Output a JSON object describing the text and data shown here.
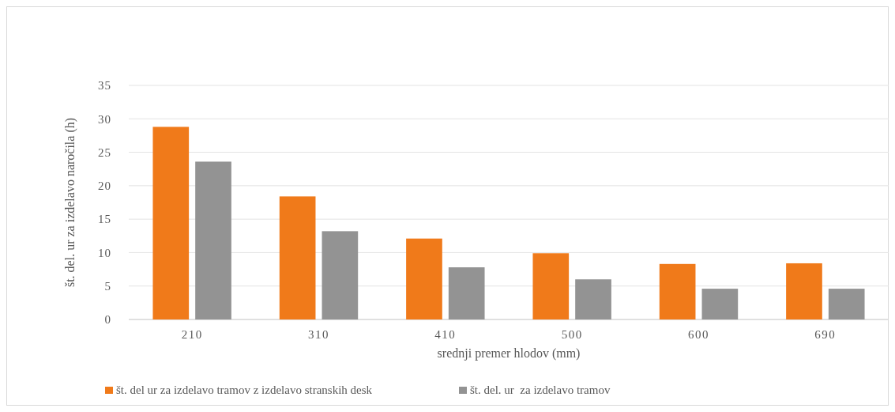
{
  "chart_data": {
    "type": "bar",
    "xlabel": "srednji premer hlodov (mm)",
    "ylabel": "št. del. ur za izdelavo naročila (h)",
    "categories": [
      "210",
      "310",
      "410",
      "500",
      "600",
      "690"
    ],
    "series": [
      {
        "name": "št. del ur za izdelavo tramov z izdelavo stranskih desk",
        "color": "#f07a1a",
        "values": [
          28.8,
          18.4,
          12.1,
          9.9,
          8.3,
          8.4
        ]
      },
      {
        "name": "št. del. ur  za izdelavo tramov",
        "color": "#939393",
        "values": [
          23.6,
          13.2,
          7.8,
          6.0,
          4.6,
          4.6
        ]
      }
    ],
    "ylim": [
      0,
      35
    ],
    "yticks": [
      0,
      5,
      10,
      15,
      20,
      25,
      30,
      35
    ],
    "grid": "y",
    "legend": "bottom"
  }
}
